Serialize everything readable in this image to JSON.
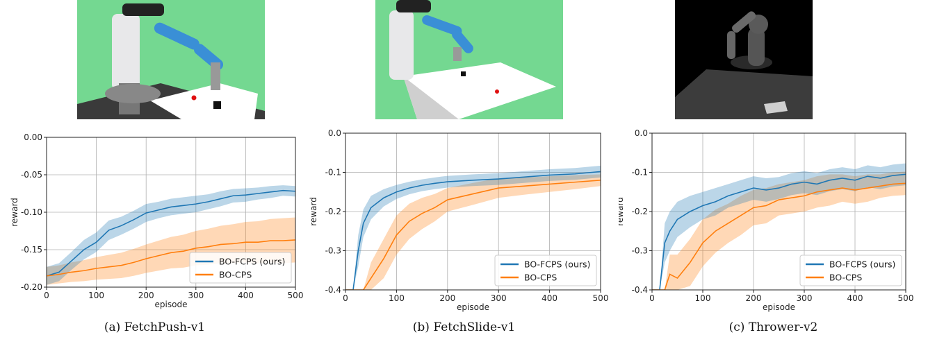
{
  "chart_data": [
    {
      "type": "line",
      "caption": "(a) FetchPush-v1",
      "xlabel": "episode",
      "ylabel": "reward",
      "xlim": [
        0,
        500
      ],
      "ylim": [
        -0.2,
        0.0
      ],
      "xticks": [
        "0",
        "100",
        "200",
        "300",
        "400",
        "500"
      ],
      "yticks": [
        "-0.20",
        "-0.15",
        "-0.10",
        "-0.05",
        "0.00"
      ],
      "ytick_values": [
        -0.2,
        -0.15,
        -0.1,
        -0.05,
        0.0
      ],
      "grid": true,
      "legend_position": "lower-right",
      "scene": "green",
      "x": [
        0,
        25,
        50,
        75,
        100,
        125,
        150,
        175,
        200,
        225,
        250,
        275,
        300,
        325,
        350,
        375,
        400,
        425,
        450,
        475,
        500
      ],
      "series": [
        {
          "name": "BO-FCPS (ours)",
          "color": "#1f77b4",
          "values": [
            -0.185,
            -0.18,
            -0.165,
            -0.15,
            -0.14,
            -0.124,
            -0.118,
            -0.11,
            -0.101,
            -0.097,
            -0.093,
            -0.091,
            -0.089,
            -0.086,
            -0.082,
            -0.078,
            -0.077,
            -0.075,
            -0.073,
            -0.071,
            -0.072
          ],
          "band": [
            0.012,
            0.012,
            0.012,
            0.013,
            0.013,
            0.013,
            0.012,
            0.012,
            0.012,
            0.011,
            0.011,
            0.011,
            0.011,
            0.01,
            0.01,
            0.009,
            0.009,
            0.008,
            0.008,
            0.007,
            0.007
          ]
        },
        {
          "name": "BO-CPS",
          "color": "#ff7f0e",
          "values": [
            -0.185,
            -0.183,
            -0.18,
            -0.178,
            -0.175,
            -0.173,
            -0.171,
            -0.167,
            -0.162,
            -0.158,
            -0.154,
            -0.152,
            -0.148,
            -0.146,
            -0.143,
            -0.142,
            -0.14,
            -0.14,
            -0.138,
            -0.138,
            -0.137
          ],
          "band": [
            0.012,
            0.012,
            0.013,
            0.014,
            0.015,
            0.016,
            0.017,
            0.018,
            0.019,
            0.02,
            0.021,
            0.022,
            0.023,
            0.024,
            0.025,
            0.026,
            0.027,
            0.028,
            0.029,
            0.03,
            0.03
          ]
        }
      ]
    },
    {
      "type": "line",
      "caption": "(b) FetchSlide-v1",
      "xlabel": "episode",
      "ylabel": "reward",
      "xlim": [
        0,
        500
      ],
      "ylim": [
        -0.4,
        0.0
      ],
      "xticks": [
        "0",
        "100",
        "200",
        "300",
        "400",
        "500"
      ],
      "yticks": [
        "-0.4",
        "-0.3",
        "-0.2",
        "-0.1",
        "0.0"
      ],
      "ytick_values": [
        -0.4,
        -0.3,
        -0.2,
        -0.1,
        0.0
      ],
      "grid": true,
      "legend_position": "lower-right",
      "scene": "green",
      "x": [
        0,
        15,
        25,
        35,
        50,
        75,
        100,
        125,
        150,
        175,
        200,
        250,
        300,
        350,
        400,
        450,
        500
      ],
      "series": [
        {
          "name": "BO-FCPS (ours)",
          "color": "#1f77b4",
          "values": [
            -0.4,
            -0.4,
            -0.3,
            -0.23,
            -0.19,
            -0.165,
            -0.15,
            -0.14,
            -0.133,
            -0.128,
            -0.124,
            -0.12,
            -0.117,
            -0.112,
            -0.107,
            -0.104,
            -0.098
          ],
          "band": [
            0.0,
            0.0,
            0.04,
            0.035,
            0.03,
            0.022,
            0.018,
            0.016,
            0.015,
            0.015,
            0.015,
            0.015,
            0.015,
            0.015,
            0.015,
            0.015,
            0.015
          ]
        },
        {
          "name": "BO-CPS",
          "color": "#ff7f0e",
          "values": [
            -0.4,
            -0.4,
            -0.4,
            -0.4,
            -0.37,
            -0.32,
            -0.26,
            -0.225,
            -0.205,
            -0.19,
            -0.17,
            -0.155,
            -0.14,
            -0.135,
            -0.13,
            -0.125,
            -0.12
          ],
          "band": [
            0.0,
            0.0,
            0.0,
            0.0,
            0.04,
            0.05,
            0.05,
            0.045,
            0.04,
            0.035,
            0.03,
            0.028,
            0.025,
            0.022,
            0.02,
            0.018,
            0.015
          ]
        }
      ]
    },
    {
      "type": "line",
      "caption": "(c) Thrower-v2",
      "xlabel": "episode",
      "ylabel": "reward",
      "xlim": [
        0,
        500
      ],
      "ylim": [
        -0.4,
        0.0
      ],
      "xticks": [
        "0",
        "100",
        "200",
        "300",
        "400",
        "500"
      ],
      "yticks": [
        "-0.4",
        "-0.3",
        "-0.2",
        "-0.1",
        "0.0"
      ],
      "ytick_values": [
        -0.4,
        -0.3,
        -0.2,
        -0.1,
        0.0
      ],
      "grid": true,
      "legend_position": "lower-right",
      "scene": "dark",
      "x": [
        0,
        15,
        25,
        35,
        50,
        75,
        100,
        125,
        150,
        175,
        200,
        225,
        250,
        275,
        300,
        325,
        350,
        375,
        400,
        425,
        450,
        475,
        500
      ],
      "series": [
        {
          "name": "BO-FCPS (ours)",
          "color": "#1f77b4",
          "values": [
            -0.4,
            -0.4,
            -0.28,
            -0.25,
            -0.22,
            -0.2,
            -0.185,
            -0.175,
            -0.16,
            -0.15,
            -0.14,
            -0.145,
            -0.14,
            -0.13,
            -0.125,
            -0.13,
            -0.12,
            -0.115,
            -0.12,
            -0.11,
            -0.115,
            -0.108,
            -0.105
          ],
          "band": [
            0.0,
            0.0,
            0.05,
            0.05,
            0.045,
            0.04,
            0.035,
            0.035,
            0.03,
            0.03,
            0.03,
            0.03,
            0.028,
            0.028,
            0.028,
            0.028,
            0.028,
            0.028,
            0.028,
            0.028,
            0.028,
            0.028,
            0.028
          ]
        },
        {
          "name": "BO-CPS",
          "color": "#ff7f0e",
          "values": [
            -0.4,
            -0.4,
            -0.4,
            -0.36,
            -0.37,
            -0.33,
            -0.28,
            -0.25,
            -0.23,
            -0.21,
            -0.19,
            -0.185,
            -0.17,
            -0.165,
            -0.16,
            -0.15,
            -0.145,
            -0.14,
            -0.145,
            -0.14,
            -0.135,
            -0.13,
            -0.128
          ],
          "band": [
            0.0,
            0.0,
            0.0,
            0.05,
            0.06,
            0.06,
            0.06,
            0.055,
            0.05,
            0.05,
            0.045,
            0.045,
            0.04,
            0.04,
            0.04,
            0.04,
            0.04,
            0.035,
            0.035,
            0.035,
            0.03,
            0.03,
            0.03
          ]
        }
      ]
    }
  ]
}
